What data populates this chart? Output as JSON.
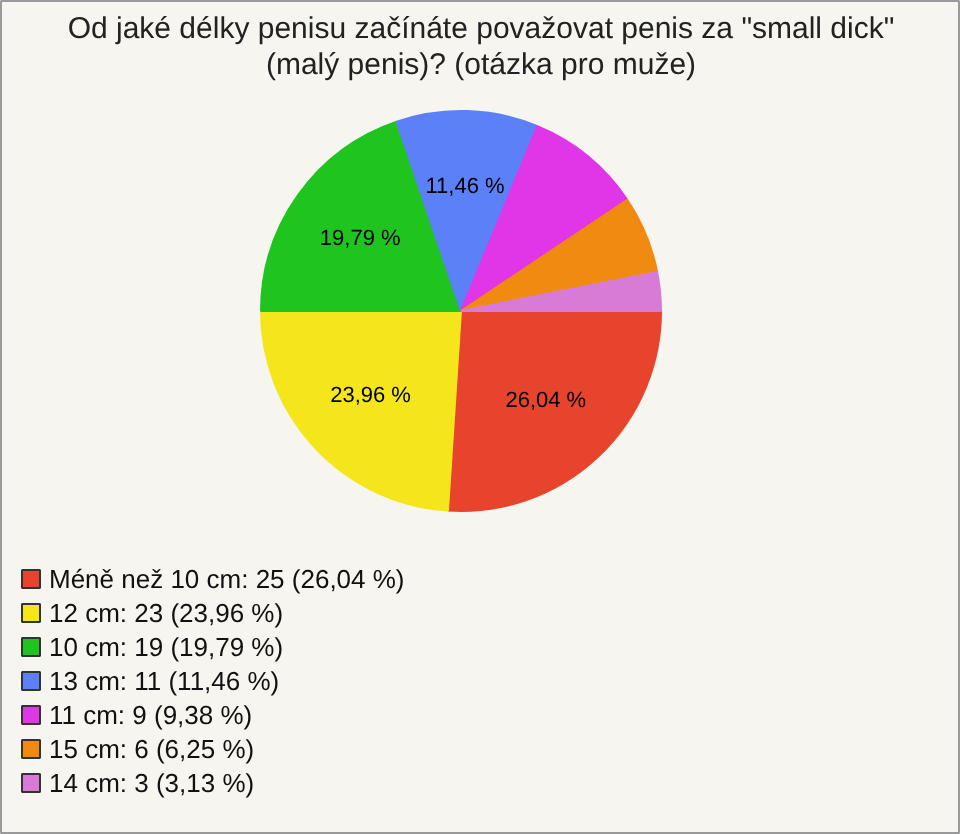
{
  "chart_data": {
    "type": "pie",
    "title": "Od jaké délky penisu začínáte považovat penis za \"small dick\" (malý penis)? (otázka pro muže)",
    "categories": [
      "Méně než 10 cm: 25 (26,04 %)",
      "12 cm: 23 (23,96 %)",
      "10 cm: 19 (19,79 %)",
      "13 cm: 11 (11,46 %)",
      "11 cm: 9 (9,38 %)",
      "15 cm: 6 (6,25 %)",
      "14 cm: 3 (3,13 %)"
    ],
    "values": [
      26.04,
      23.96,
      19.79,
      11.46,
      9.38,
      6.25,
      3.13
    ],
    "colors": [
      "#e8432d",
      "#f5e61c",
      "#1fc41f",
      "#5b80f8",
      "#e036e8",
      "#f08a10",
      "#d77bd7"
    ],
    "value_labels": [
      "26,04 %",
      "23,96 %",
      "19,79 %",
      "11,46 %",
      null,
      null,
      null
    ],
    "legend": "bottom left"
  }
}
